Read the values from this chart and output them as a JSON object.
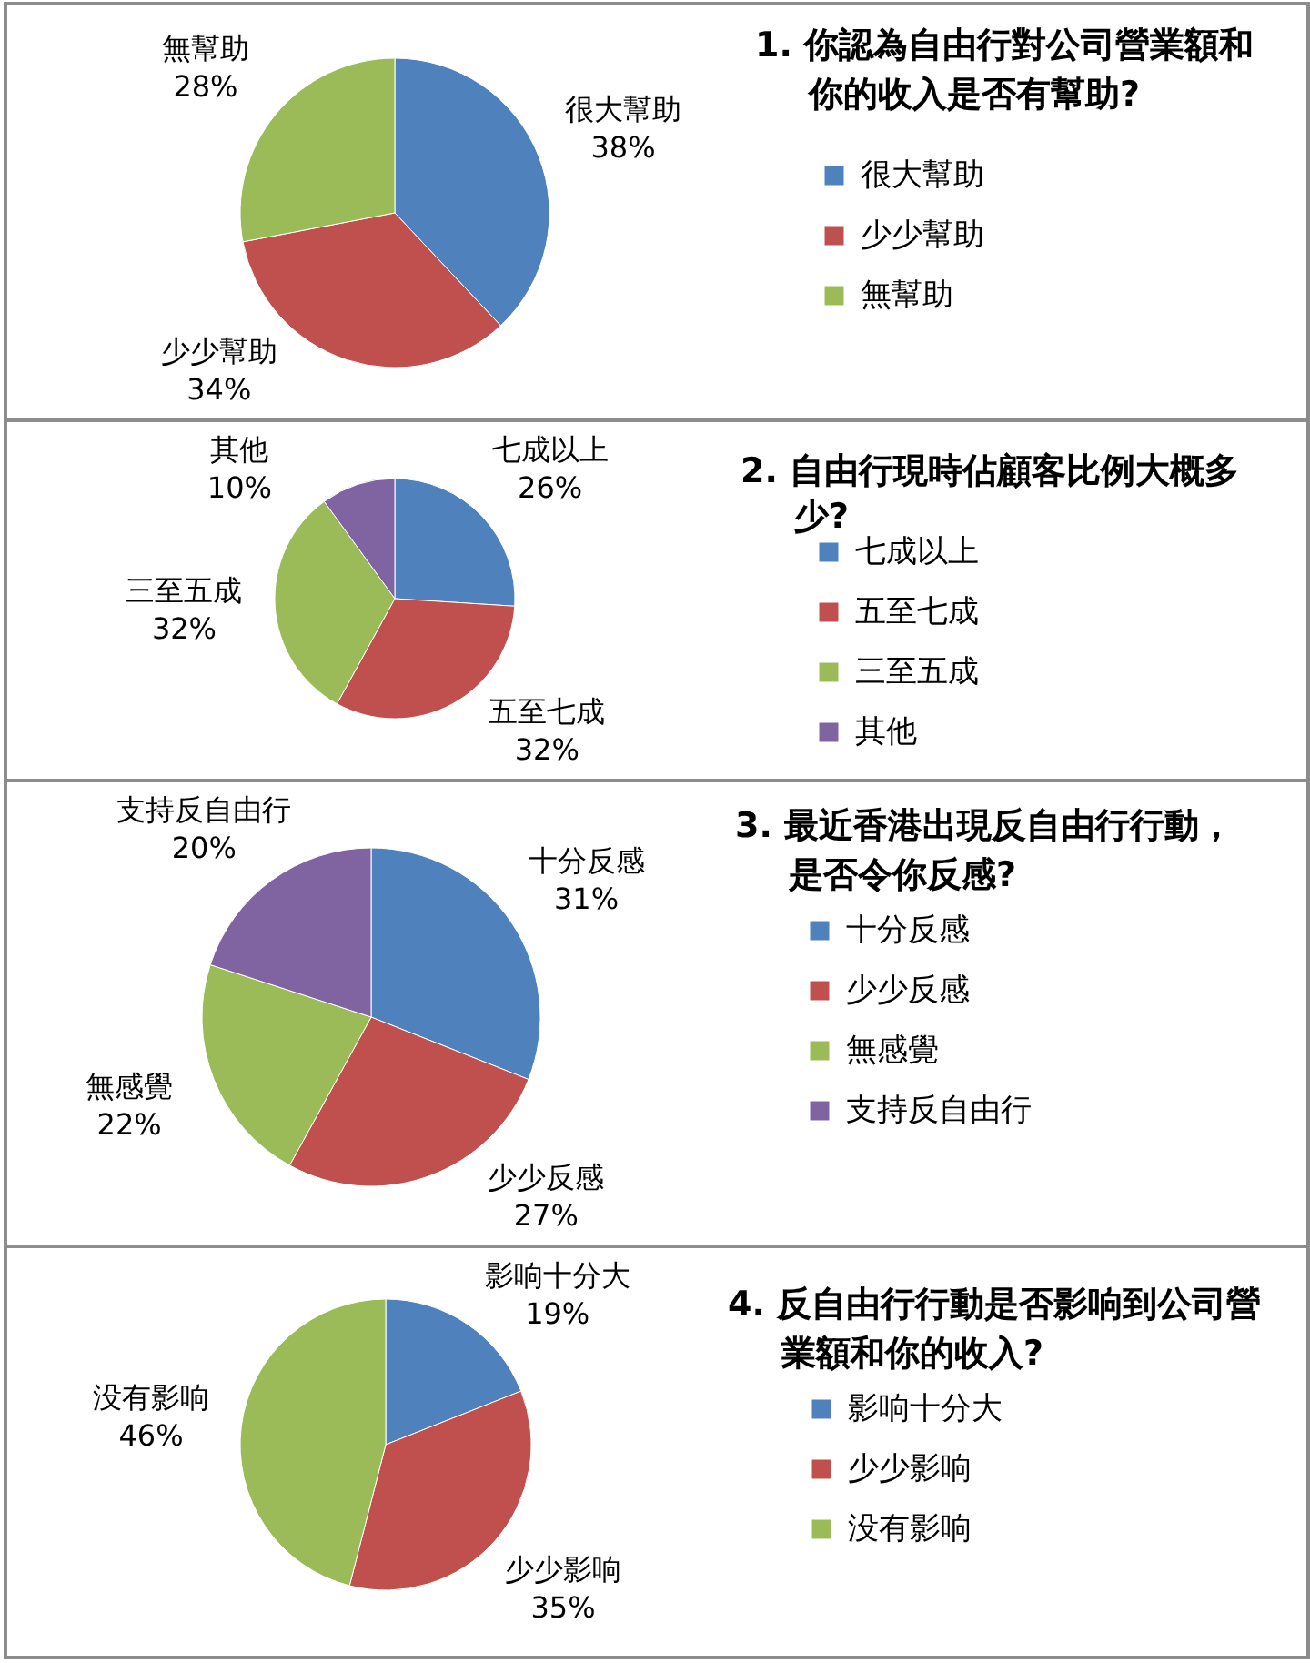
{
  "chart_data": [
    {
      "type": "pie",
      "title": "1. 你認為自由行對公司營業額和你的收入是否有幫助?",
      "categories": [
        "很大幫助",
        "少少幫助",
        "無幫助"
      ],
      "values": [
        38,
        34,
        28
      ],
      "colors": [
        "#4f81bd",
        "#c0504d",
        "#9bbb59"
      ],
      "value_labels": [
        "38%",
        "34%",
        "28%"
      ],
      "legend": "right"
    },
    {
      "type": "pie",
      "title": "2. 自由行現時佔顧客比例大概多少?",
      "categories": [
        "七成以上",
        "五至七成",
        "三至五成",
        "其他"
      ],
      "values": [
        26,
        32,
        32,
        10
      ],
      "colors": [
        "#4f81bd",
        "#c0504d",
        "#9bbb59",
        "#8064a2"
      ],
      "value_labels": [
        "26%",
        "32%",
        "32%",
        "10%"
      ],
      "legend": "right"
    },
    {
      "type": "pie",
      "title": "3. 最近香港出現反自由行行動，是否令你反感?",
      "categories": [
        "十分反感",
        "少少反感",
        "無感覺",
        "支持反自由行"
      ],
      "values": [
        31,
        27,
        22,
        20
      ],
      "colors": [
        "#4f81bd",
        "#c0504d",
        "#9bbb59",
        "#8064a2"
      ],
      "value_labels": [
        "31%",
        "27%",
        "22%",
        "20%"
      ],
      "legend": "right"
    },
    {
      "type": "pie",
      "title": "4. 反自由行行動是否影响到公司營業額和你的收入?",
      "categories": [
        "影响十分大",
        "少少影响",
        "没有影响"
      ],
      "values": [
        19,
        35,
        46
      ],
      "colors": [
        "#4f81bd",
        "#c0504d",
        "#9bbb59"
      ],
      "value_labels": [
        "19%",
        "35%",
        "46%"
      ],
      "legend": "right"
    }
  ]
}
